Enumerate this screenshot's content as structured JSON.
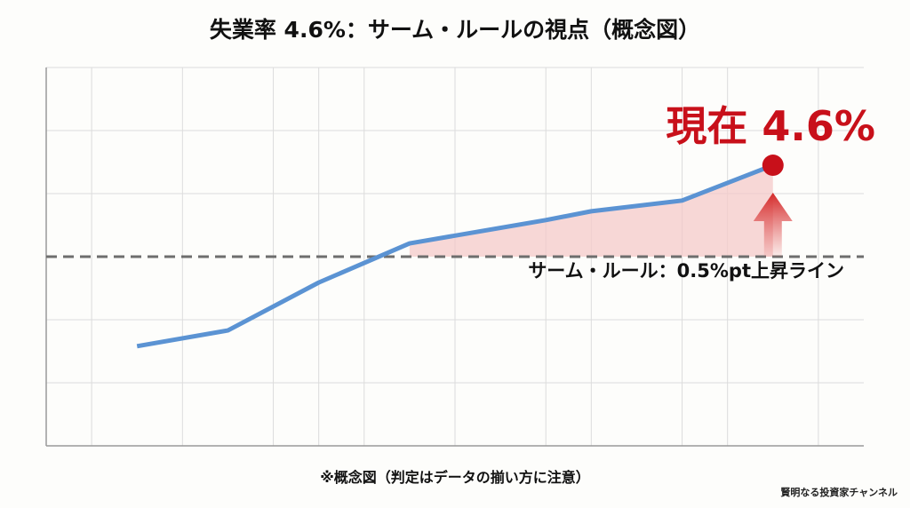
{
  "chart_data": {
    "type": "line",
    "title": "失業率 4.6%：サーム・ルールの視点（概念図）",
    "xlabel": "",
    "ylabel": "",
    "xlim": [
      0,
      18
    ],
    "ylim": [
      0,
      6
    ],
    "grid": true,
    "x": [
      2,
      4,
      6,
      8,
      11,
      12,
      14,
      16
    ],
    "values": [
      1.58,
      1.83,
      2.59,
      3.21,
      3.58,
      3.72,
      3.89,
      4.45
    ],
    "threshold": 3,
    "threshold_label": "サーム・ルール：0.5%pt上昇ライン",
    "annotation": "現在 4.6%",
    "note": "※概念図（判定はデータの揃い方に注意）",
    "colors": {
      "line": "#5b93d3",
      "accent": "#c8101a",
      "fill": "#f4c9c9",
      "threshold": "#6e6e6e"
    }
  },
  "brand": "賢明なる投資家チャンネル"
}
